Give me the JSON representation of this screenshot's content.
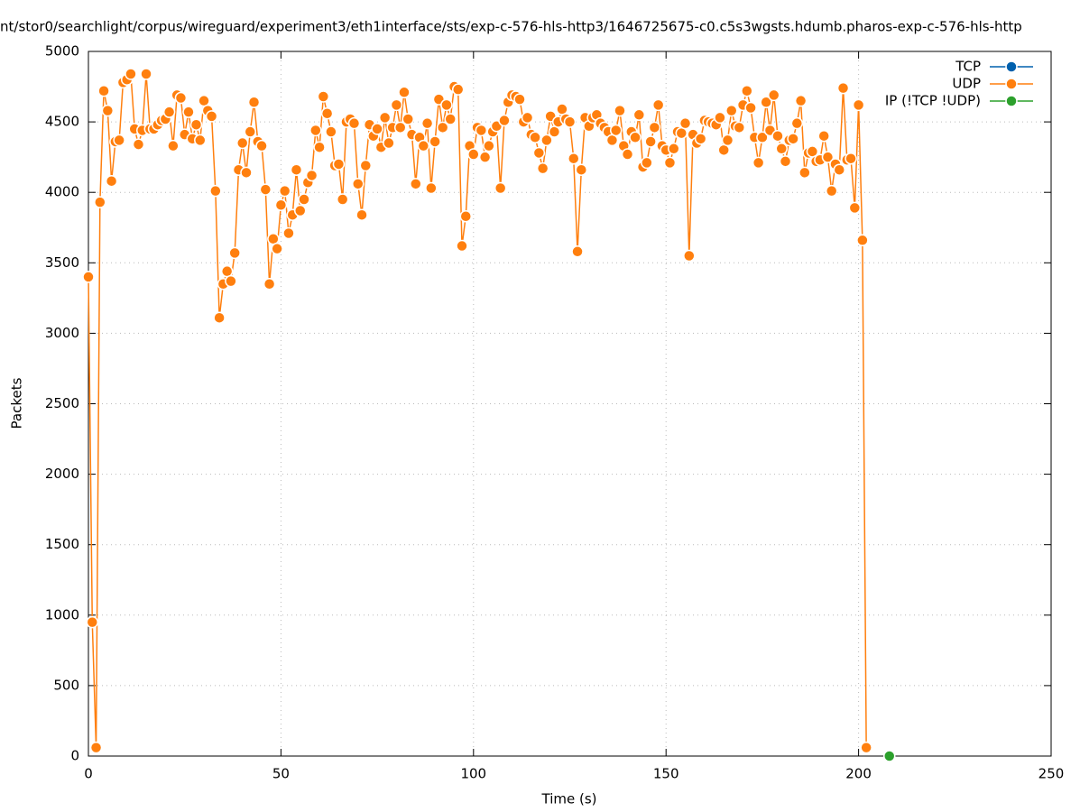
{
  "chart_data": {
    "type": "line",
    "title": "nt/stor0/searchlight/corpus/wireguard/experiment3/eth1interface/sts/exp-c-576-hls-http3/1646725675-c0.c5s3wgsts.hdumb.pharos-exp-c-576-hls-http",
    "xlabel": "Time (s)",
    "ylabel": "Packets",
    "xlim": [
      0,
      250
    ],
    "xticks": [
      0,
      50,
      100,
      150,
      200,
      250
    ],
    "ylim": [
      0,
      5000
    ],
    "yticks": [
      0,
      500,
      1000,
      1500,
      2000,
      2500,
      3000,
      3500,
      4000,
      4500,
      5000
    ],
    "grid": true,
    "legend": "top-right",
    "series": [
      {
        "name": "TCP",
        "color": "#0060ad",
        "x": [],
        "values": []
      },
      {
        "name": "UDP",
        "color": "#ff7f0e",
        "x": [
          0,
          1,
          2,
          3,
          4,
          5,
          6,
          7,
          8,
          9,
          10,
          11,
          12,
          13,
          14,
          15,
          16,
          17,
          18,
          19,
          20,
          21,
          22,
          23,
          24,
          25,
          26,
          27,
          28,
          29,
          30,
          31,
          32,
          33,
          34,
          35,
          36,
          37,
          38,
          39,
          40,
          41,
          42,
          43,
          44,
          45,
          46,
          47,
          48,
          49,
          50,
          51,
          52,
          53,
          54,
          55,
          56,
          57,
          58,
          59,
          60,
          61,
          62,
          63,
          64,
          65,
          66,
          67,
          68,
          69,
          70,
          71,
          72,
          73,
          74,
          75,
          76,
          77,
          78,
          79,
          80,
          81,
          82,
          83,
          84,
          85,
          86,
          87,
          88,
          89,
          90,
          91,
          92,
          93,
          94,
          95,
          96,
          97,
          98,
          99,
          100,
          101,
          102,
          103,
          104,
          105,
          106,
          107,
          108,
          109,
          110,
          111,
          112,
          113,
          114,
          115,
          116,
          117,
          118,
          119,
          120,
          121,
          122,
          123,
          124,
          125,
          126,
          127,
          128,
          129,
          130,
          131,
          132,
          133,
          134,
          135,
          136,
          137,
          138,
          139,
          140,
          141,
          142,
          143,
          144,
          145,
          146,
          147,
          148,
          149,
          150,
          151,
          152,
          153,
          154,
          155,
          156,
          157,
          158,
          159,
          160,
          161,
          162,
          163,
          164,
          165,
          166,
          167,
          168,
          169,
          170,
          171,
          172,
          173,
          174,
          175,
          176,
          177,
          178,
          179,
          180,
          181,
          182,
          183,
          184,
          185,
          186,
          187,
          188,
          189,
          190,
          191,
          192,
          193,
          194,
          195,
          196,
          197,
          198,
          199,
          200,
          201,
          202
        ],
        "values": [
          3400,
          950,
          60,
          3930,
          4720,
          4580,
          4080,
          4360,
          4370,
          4780,
          4800,
          4840,
          4450,
          4340,
          4440,
          4840,
          4450,
          4450,
          4480,
          4510,
          4520,
          4570,
          4330,
          4690,
          4670,
          4410,
          4570,
          4380,
          4480,
          4370,
          4650,
          4580,
          4540,
          4010,
          3110,
          3350,
          3440,
          3370,
          3570,
          4160,
          4350,
          4140,
          4430,
          4640,
          4360,
          4330,
          4020,
          3350,
          3670,
          3600,
          3910,
          4010,
          3710,
          3840,
          4160,
          3870,
          3950,
          4070,
          4120,
          4440,
          4320,
          4680,
          4560,
          4430,
          4190,
          4200,
          3950,
          4500,
          4520,
          4490,
          4060,
          3840,
          4190,
          4480,
          4400,
          4450,
          4320,
          4530,
          4350,
          4460,
          4620,
          4460,
          4710,
          4520,
          4410,
          4060,
          4390,
          4330,
          4490,
          4030,
          4360,
          4660,
          4460,
          4620,
          4520,
          4750,
          4730,
          3620,
          3830,
          4330,
          4270,
          4460,
          4440,
          4250,
          4330,
          4430,
          4470,
          4030,
          4510,
          4640,
          4690,
          4680,
          4660,
          4500,
          4530,
          4410,
          4390,
          4280,
          4170,
          4370,
          4540,
          4430,
          4500,
          4590,
          4520,
          4500,
          4240,
          3580,
          4160,
          4530,
          4470,
          4530,
          4550,
          4490,
          4460,
          4430,
          4370,
          4440,
          4580,
          4330,
          4270,
          4430,
          4390,
          4550,
          4180,
          4210,
          4360,
          4460,
          4620,
          4330,
          4300,
          4210,
          4310,
          4430,
          4420,
          4490,
          3550,
          4410,
          4350,
          4380,
          4510,
          4500,
          4490,
          4480,
          4530,
          4300,
          4370,
          4580,
          4470,
          4460,
          4620,
          4720,
          4600,
          4390,
          4210,
          4390,
          4640,
          4440,
          4690,
          4400,
          4310,
          4220,
          4370,
          4380,
          4490,
          4650,
          4140,
          4280,
          4290,
          4220,
          4230,
          4400,
          4250,
          4010,
          4200,
          4160,
          4740,
          4230,
          4240,
          3890,
          4620,
          3660,
          60
        ]
      },
      {
        "name": "IP (!TCP  !UDP)",
        "color": "#2ca02c",
        "x": [
          208
        ],
        "values": [
          0
        ]
      }
    ]
  }
}
